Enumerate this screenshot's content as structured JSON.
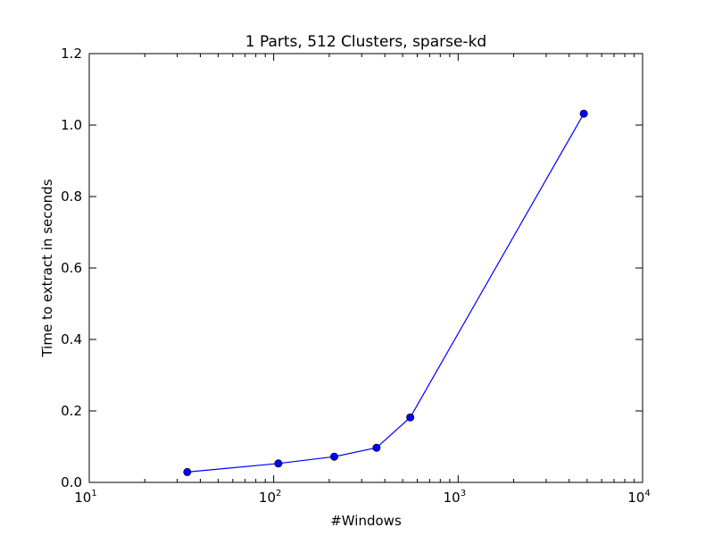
{
  "chart_data": {
    "type": "line",
    "title": "1 Parts, 512 Clusters, sparse-kd",
    "xlabel": "#Windows",
    "ylabel": "Time to extract in seconds",
    "xscale": "log",
    "xlim": [
      10,
      10000
    ],
    "ylim": [
      0.0,
      1.2
    ],
    "x_ticks": [
      {
        "value": 10,
        "base": "10",
        "exp": "1"
      },
      {
        "value": 100,
        "base": "10",
        "exp": "2"
      },
      {
        "value": 1000,
        "base": "10",
        "exp": "3"
      },
      {
        "value": 10000,
        "base": "10",
        "exp": "4"
      }
    ],
    "y_ticks": [
      {
        "value": 0.0,
        "label": "0.0"
      },
      {
        "value": 0.2,
        "label": "0.2"
      },
      {
        "value": 0.4,
        "label": "0.4"
      },
      {
        "value": 0.6,
        "label": "0.6"
      },
      {
        "value": 0.8,
        "label": "0.8"
      },
      {
        "value": 1.0,
        "label": "1.0"
      },
      {
        "value": 1.2,
        "label": "1.2"
      }
    ],
    "grid": false,
    "series": [
      {
        "color": "#0000ff",
        "marker": "circle",
        "x": [
          34,
          106,
          213,
          361,
          550,
          4800
        ],
        "y": [
          0.029,
          0.053,
          0.072,
          0.097,
          0.182,
          1.032
        ]
      }
    ]
  }
}
